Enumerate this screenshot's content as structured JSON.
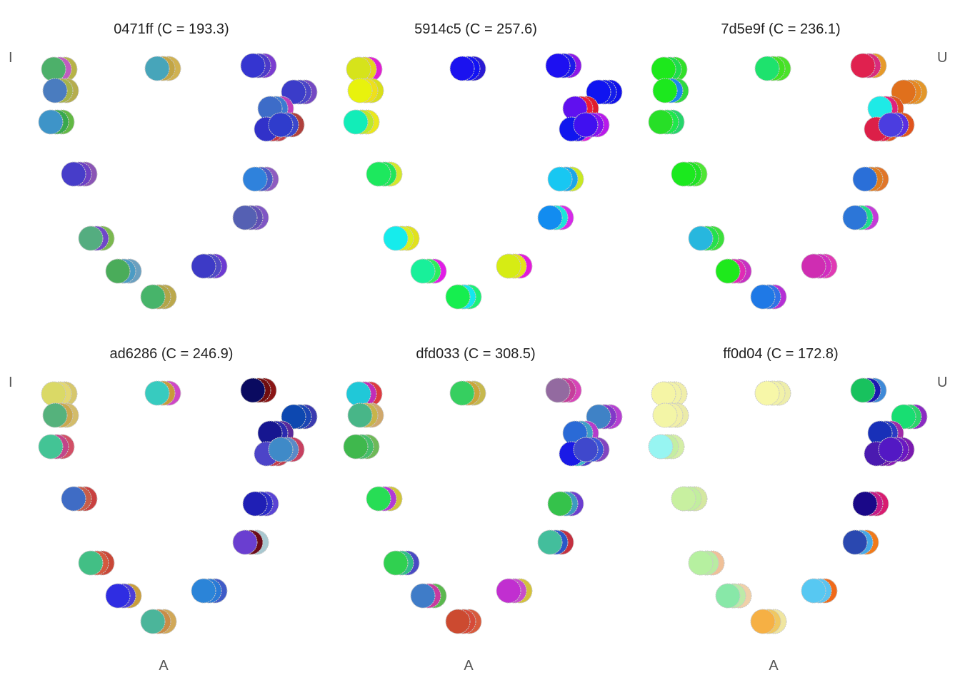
{
  "chart_data": {
    "type": "scatter",
    "labels": {
      "left": "I",
      "right": "U",
      "bottom": "A"
    },
    "panels": [
      {
        "title": "0471ff (C = 193.3)",
        "groups": [
          [
            "#4db06a",
            "#c05cc0",
            "#b7b347"
          ],
          [
            "#4a7cbf",
            "#a6b349",
            "#b5ad4e"
          ],
          [
            "#3e94c8",
            "#38a84e",
            "#62b944"
          ],
          [
            "#473dc9",
            "#6b3fc4",
            "#8a55b5"
          ],
          [
            "#54ad80",
            "#6f47c8",
            "#7bb84f"
          ],
          [
            "#4aac5a",
            "#4b9bc4",
            "#6ba0c0"
          ],
          [
            "#47b46a",
            "#b1a548",
            "#bba84c"
          ],
          [
            "#47a5ba",
            "#c2a545",
            "#d0b251"
          ],
          [
            "#3535d0",
            "#4b3ac8",
            "#7a3cd0"
          ],
          [
            "#3b3cc9",
            "#4b44c8",
            "#7449c3"
          ],
          [
            "#2f82dc",
            "#4a5bc6",
            "#8e5cc0"
          ],
          [
            "#5560b3",
            "#6050b4",
            "#7f56c4"
          ],
          [
            "#3d3ac6",
            "#4e48c5",
            "#6c3ad2"
          ],
          [
            "#3d6cc8",
            "#3b7bd2",
            "#c03eb9"
          ],
          [
            "#3131c9",
            "#c43a46",
            "#c3454e"
          ],
          [
            "#2f3ccc",
            "#3b48cd",
            "#b0403c"
          ]
        ]
      },
      {
        "title": "5914c5 (C = 257.6)",
        "groups": [
          [
            "#d6e31b",
            "#e3d61c",
            "#e01fd2"
          ],
          [
            "#e8f20d",
            "#eee01c",
            "#d9df1a"
          ],
          [
            "#12edb8",
            "#bde82a",
            "#eae81c"
          ],
          [
            "#1de85e",
            "#22e55a",
            "#d4e82b"
          ],
          [
            "#16ecec",
            "#d9f01e",
            "#e1e11e"
          ],
          [
            "#18f09a",
            "#2cee5d",
            "#e11de6"
          ],
          [
            "#16ee4f",
            "#14e6ef",
            "#1cf078"
          ],
          [
            "#1b12ef",
            "#1212f4",
            "#2a1ad4"
          ],
          [
            "#1d10f1",
            "#1d1ae8",
            "#8a16e8"
          ],
          [
            "#1014f0",
            "#141cea",
            "#1111ea"
          ],
          [
            "#18c7f2",
            "#1ba6e9",
            "#c8e824"
          ],
          [
            "#128cf0",
            "#1ae5da",
            "#d62ae8"
          ],
          [
            "#d6ec14",
            "#e4e41a",
            "#e31ad9"
          ],
          [
            "#6010ef",
            "#ef1c36",
            "#e01c2c"
          ],
          [
            "#1016ee",
            "#2014ea",
            "#e21adc"
          ],
          [
            "#4010f0",
            "#8312ef",
            "#b81aea"
          ]
        ]
      },
      {
        "title": "7d5e9f (C = 236.1)",
        "groups": [
          [
            "#1de81c",
            "#1edc4d",
            "#32e02a"
          ],
          [
            "#1ce81e",
            "#1a86ee",
            "#2dda3e"
          ],
          [
            "#27df27",
            "#1ee84b",
            "#26d56b"
          ],
          [
            "#1be91e",
            "#1fe224",
            "#4ee634"
          ],
          [
            "#27b7de",
            "#24e04d",
            "#3ce03b"
          ],
          [
            "#1ee91c",
            "#e02ab5",
            "#c830c3"
          ],
          [
            "#1f79e6",
            "#2f72e6",
            "#b52fd4"
          ],
          [
            "#1ee26d",
            "#42e222",
            "#4be32a"
          ],
          [
            "#e0214f",
            "#d82c7d",
            "#e69a2a"
          ],
          [
            "#e0701c",
            "#e68722",
            "#e3972a"
          ],
          [
            "#2a6fd8",
            "#dd7c20",
            "#e0762a"
          ],
          [
            "#2c76d8",
            "#1fdc8c",
            "#c33bd8"
          ],
          [
            "#cf2db2",
            "#d12dc0",
            "#e03ab4"
          ],
          [
            "#1eeae6",
            "#e0217e",
            "#e0511e"
          ],
          [
            "#dc1f48",
            "#e6204a",
            "#e05a1e"
          ],
          [
            "#4b3de0",
            "#5a2fe2",
            "#e0541d"
          ]
        ]
      },
      {
        "title": "ad6286 (C = 246.9)",
        "groups": [
          [
            "#dad966",
            "#e3d872",
            "#d6c76c"
          ],
          [
            "#55b27c",
            "#caa84e",
            "#d3bc6a"
          ],
          [
            "#43c495",
            "#c2458a",
            "#d24f66"
          ],
          [
            "#3f6cc5",
            "#c85d49",
            "#c94140"
          ],
          [
            "#42bf85",
            "#d4593f",
            "#c94838"
          ],
          [
            "#2f2de2",
            "#4c3dd6",
            "#c99e3c"
          ],
          [
            "#4bb59a",
            "#c98c46",
            "#d1a858"
          ],
          [
            "#37cbbf",
            "#c99a3a",
            "#cf46c6"
          ],
          [
            "#0a0a60",
            "#6f0d10",
            "#8a1616"
          ],
          [
            "#0d48b0",
            "#1945b4",
            "#3a3ab0"
          ],
          [
            "#1f1fb5",
            "#2b2bc7",
            "#5a44d4"
          ],
          [
            "#6a3ed0",
            "#6b0b18",
            "#a8c8d0"
          ],
          [
            "#2b84d8",
            "#2a7ad6",
            "#3f5bc8"
          ],
          [
            "#161690",
            "#2a2ab0",
            "#5a2a9a"
          ],
          [
            "#4c44c8",
            "#c63a4a",
            "#c44050"
          ],
          [
            "#3f8ac8",
            "#5a8ac8",
            "#c74060"
          ]
        ]
      },
      {
        "title": "dfd033 (C = 308.5)",
        "groups": [
          [
            "#20c8d8",
            "#c22cb8",
            "#dd3a40"
          ],
          [
            "#48b688",
            "#c8b44a",
            "#d0a86c"
          ],
          [
            "#3fb84d",
            "#45be6a",
            "#6eb958"
          ],
          [
            "#27dd55",
            "#b338d6",
            "#d0c43a"
          ],
          [
            "#30d050",
            "#30bd8a",
            "#4a4ac4"
          ],
          [
            "#3f7cc8",
            "#c83aa0",
            "#5ab84e"
          ],
          [
            "#cc4a30",
            "#d64a38",
            "#d85a3c"
          ],
          [
            "#36cf60",
            "#caa43a",
            "#c6b84d"
          ],
          [
            "#936aa0",
            "#c53e9b",
            "#d844b8"
          ],
          [
            "#3f82c6",
            "#8238c8",
            "#b53fd2"
          ],
          [
            "#35c24b",
            "#3d9bc0",
            "#6c3dd0"
          ],
          [
            "#43be9c",
            "#2a58c8",
            "#c43040"
          ],
          [
            "#c12fd0",
            "#c84dca",
            "#d4c23a"
          ],
          [
            "#2a6ad6",
            "#3f9ec8",
            "#b53bcb"
          ],
          [
            "#1a1ae6",
            "#3ab8c8",
            "#4a3acc"
          ],
          [
            "#3f48cc",
            "#3a55d8",
            "#8244c0"
          ]
        ]
      },
      {
        "title": "ff0d04 (C = 172.8)",
        "groups": [
          [
            "#f5f5a5",
            "#f2f2a8",
            "#f0eeaa"
          ],
          [
            "#f3f5a6",
            "#f2f0a8",
            "#ebeba8"
          ],
          [
            "#97f5f2",
            "#c4eea2",
            "#d4eea6"
          ],
          [
            "#c8f0a0",
            "#c2ee9e",
            "#d4e8a0"
          ],
          [
            "#b6f0a0",
            "#b8eca2",
            "#f0c098"
          ],
          [
            "#88e8a8",
            "#bceaa8",
            "#f0d0a8"
          ],
          [
            "#f6b044",
            "#f0c860",
            "#f0e6a0"
          ],
          [
            "#f7f7a8",
            "#f2f2a8",
            "#eeeeaa"
          ],
          [
            "#18c25e",
            "#1a1ab0",
            "#3f8ad8"
          ],
          [
            "#18de72",
            "#2ad46a",
            "#8a2ac2"
          ],
          [
            "#1a0888",
            "#c41a88",
            "#d81c70"
          ],
          [
            "#2a48b0",
            "#44a8e8",
            "#f07a1a"
          ],
          [
            "#57c8f2",
            "#5bc4f0",
            "#f06a1a"
          ],
          [
            "#1830b8",
            "#2a3ac4",
            "#a02aa8"
          ],
          [
            "#4a1ab0",
            "#6a1aa8",
            "#8a1ab8"
          ],
          [
            "#5318c4",
            "#6a18c2",
            "#7a1ab0"
          ]
        ]
      }
    ]
  }
}
